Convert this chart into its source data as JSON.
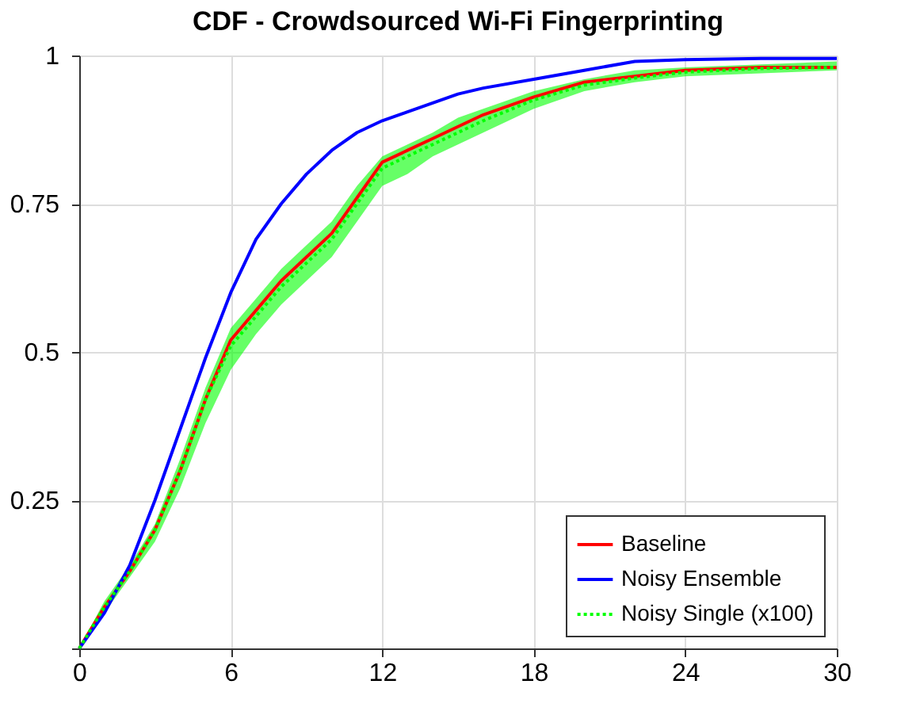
{
  "chart_data": {
    "type": "line",
    "title": "CDF - Crowdsourced Wi-Fi Fingerprinting",
    "x": [
      0,
      1,
      2,
      3,
      4,
      5,
      6,
      7,
      8,
      9,
      10,
      11,
      12,
      13,
      14,
      15,
      16,
      18,
      20,
      22,
      24,
      27,
      30
    ],
    "series": [
      {
        "name": "Baseline",
        "color": "#ff0000",
        "line_style": "solid",
        "values": [
          0,
          0.07,
          0.13,
          0.2,
          0.3,
          0.42,
          0.52,
          0.57,
          0.62,
          0.66,
          0.7,
          0.76,
          0.82,
          0.84,
          0.86,
          0.88,
          0.9,
          0.93,
          0.955,
          0.965,
          0.975,
          0.98,
          0.98
        ]
      },
      {
        "name": "Noisy Ensemble",
        "color": "#0000ff",
        "line_style": "solid",
        "values": [
          0,
          0.06,
          0.14,
          0.25,
          0.37,
          0.49,
          0.6,
          0.69,
          0.75,
          0.8,
          0.84,
          0.87,
          0.89,
          0.905,
          0.92,
          0.935,
          0.945,
          0.96,
          0.975,
          0.99,
          0.993,
          0.995,
          0.995
        ]
      },
      {
        "name": "Noisy Single (x100)",
        "color": "#00ff00",
        "line_style": "dotted",
        "values": [
          0,
          0.07,
          0.13,
          0.2,
          0.3,
          0.42,
          0.51,
          0.56,
          0.61,
          0.65,
          0.69,
          0.75,
          0.81,
          0.83,
          0.85,
          0.87,
          0.89,
          0.925,
          0.95,
          0.962,
          0.972,
          0.978,
          0.98
        ],
        "lower": [
          0,
          0.06,
          0.12,
          0.18,
          0.27,
          0.38,
          0.47,
          0.53,
          0.58,
          0.62,
          0.66,
          0.72,
          0.78,
          0.8,
          0.83,
          0.85,
          0.87,
          0.91,
          0.94,
          0.955,
          0.965,
          0.97,
          0.975
        ],
        "upper": [
          0,
          0.08,
          0.14,
          0.21,
          0.32,
          0.44,
          0.54,
          0.59,
          0.64,
          0.68,
          0.72,
          0.78,
          0.83,
          0.85,
          0.87,
          0.895,
          0.91,
          0.94,
          0.96,
          0.975,
          0.98,
          0.985,
          0.99
        ]
      }
    ],
    "xlim": [
      0,
      30
    ],
    "xticks": [
      0,
      6,
      12,
      18,
      24,
      30
    ],
    "ylim": [
      0,
      1
    ],
    "yticks": [
      {
        "value": 0,
        "label": null
      },
      0.25,
      0.5,
      0.75,
      1
    ],
    "grid": true,
    "legend": "bottom right",
    "marker": "none"
  }
}
